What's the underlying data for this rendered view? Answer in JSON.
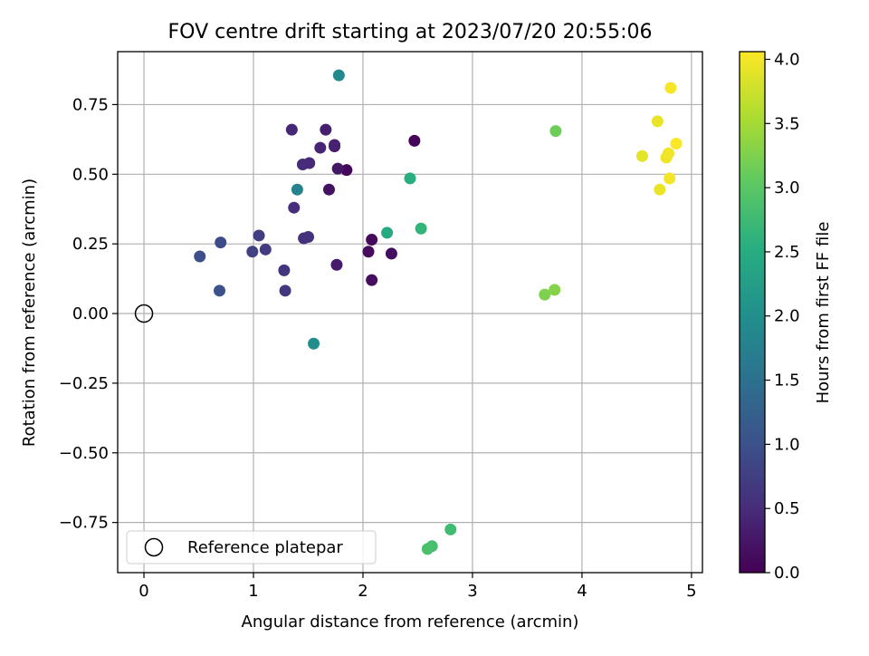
{
  "chart_data": {
    "type": "scatter",
    "title": "FOV centre drift starting at 2023/07/20 20:55:06",
    "xlabel": "Angular distance from reference (arcmin)",
    "ylabel": "Rotation from reference (arcmin)",
    "xlim": [
      -0.24,
      5.1
    ],
    "ylim": [
      -0.93,
      0.94
    ],
    "xticks": [
      0,
      1,
      2,
      3,
      4,
      5
    ],
    "xtick_labels": [
      "0",
      "1",
      "2",
      "3",
      "4",
      "5"
    ],
    "yticks": [
      -0.75,
      -0.5,
      -0.25,
      0.0,
      0.25,
      0.5,
      0.75
    ],
    "ytick_labels": [
      "−0.75",
      "−0.50",
      "−0.25",
      "0.00",
      "0.25",
      "0.50",
      "0.75"
    ],
    "grid": true,
    "colormap": "viridis",
    "colorbar": {
      "label": "Hours from first FF file",
      "range": [
        0.0,
        4.06
      ],
      "ticks": [
        0.0,
        0.5,
        1.0,
        1.5,
        2.0,
        2.5,
        3.0,
        3.5,
        4.0
      ],
      "tick_labels": [
        "0.0",
        "0.5",
        "1.0",
        "1.5",
        "2.0",
        "2.5",
        "3.0",
        "3.5",
        "4.0"
      ]
    },
    "legend": {
      "entries": [
        "Reference platepar"
      ],
      "placement": "lower-left"
    },
    "reference_point": {
      "name": "Reference platepar",
      "x": 0.0,
      "y": 0.0
    },
    "points": [
      {
        "x": 2.47,
        "y": 0.62,
        "hours": 0.05
      },
      {
        "x": 1.85,
        "y": 0.515,
        "hours": 0.08
      },
      {
        "x": 2.08,
        "y": 0.265,
        "hours": 0.1
      },
      {
        "x": 2.05,
        "y": 0.222,
        "hours": 0.12
      },
      {
        "x": 2.26,
        "y": 0.215,
        "hours": 0.14
      },
      {
        "x": 2.08,
        "y": 0.12,
        "hours": 0.16
      },
      {
        "x": 1.69,
        "y": 0.445,
        "hours": 0.18
      },
      {
        "x": 1.74,
        "y": 0.6,
        "hours": 0.22
      },
      {
        "x": 1.77,
        "y": 0.52,
        "hours": 0.25
      },
      {
        "x": 1.76,
        "y": 0.175,
        "hours": 0.28
      },
      {
        "x": 1.66,
        "y": 0.66,
        "hours": 0.35
      },
      {
        "x": 1.74,
        "y": 0.605,
        "hours": 0.38
      },
      {
        "x": 1.61,
        "y": 0.595,
        "hours": 0.42
      },
      {
        "x": 1.35,
        "y": 0.66,
        "hours": 0.45
      },
      {
        "x": 1.51,
        "y": 0.54,
        "hours": 0.48
      },
      {
        "x": 1.45,
        "y": 0.535,
        "hours": 0.5
      },
      {
        "x": 1.37,
        "y": 0.38,
        "hours": 0.53
      },
      {
        "x": 1.46,
        "y": 0.27,
        "hours": 0.56
      },
      {
        "x": 1.5,
        "y": 0.275,
        "hours": 0.58
      },
      {
        "x": 1.28,
        "y": 0.155,
        "hours": 0.62
      },
      {
        "x": 1.29,
        "y": 0.082,
        "hours": 0.65
      },
      {
        "x": 1.11,
        "y": 0.23,
        "hours": 0.7
      },
      {
        "x": 1.05,
        "y": 0.28,
        "hours": 0.74
      },
      {
        "x": 0.99,
        "y": 0.222,
        "hours": 0.78
      },
      {
        "x": 0.7,
        "y": 0.255,
        "hours": 0.92
      },
      {
        "x": 0.51,
        "y": 0.205,
        "hours": 0.97
      },
      {
        "x": 0.69,
        "y": 0.082,
        "hours": 1.02
      },
      {
        "x": 1.4,
        "y": 0.445,
        "hours": 1.8
      },
      {
        "x": 1.78,
        "y": 0.855,
        "hours": 1.9
      },
      {
        "x": 1.55,
        "y": -0.108,
        "hours": 1.95
      },
      {
        "x": 2.22,
        "y": 0.29,
        "hours": 2.45
      },
      {
        "x": 2.43,
        "y": 0.485,
        "hours": 2.55
      },
      {
        "x": 2.53,
        "y": 0.305,
        "hours": 2.65
      },
      {
        "x": 2.8,
        "y": -0.775,
        "hours": 2.78
      },
      {
        "x": 2.63,
        "y": -0.835,
        "hours": 2.83
      },
      {
        "x": 2.59,
        "y": -0.845,
        "hours": 2.87
      },
      {
        "x": 3.76,
        "y": 0.655,
        "hours": 3.15
      },
      {
        "x": 3.66,
        "y": 0.068,
        "hours": 3.25
      },
      {
        "x": 3.75,
        "y": 0.085,
        "hours": 3.3
      },
      {
        "x": 4.55,
        "y": 0.565,
        "hours": 3.9
      },
      {
        "x": 4.69,
        "y": 0.69,
        "hours": 3.93
      },
      {
        "x": 4.71,
        "y": 0.445,
        "hours": 3.95
      },
      {
        "x": 4.77,
        "y": 0.56,
        "hours": 3.97
      },
      {
        "x": 4.79,
        "y": 0.575,
        "hours": 3.98
      },
      {
        "x": 4.8,
        "y": 0.485,
        "hours": 4.0
      },
      {
        "x": 4.81,
        "y": 0.81,
        "hours": 4.02
      },
      {
        "x": 4.86,
        "y": 0.61,
        "hours": 4.04
      }
    ]
  }
}
